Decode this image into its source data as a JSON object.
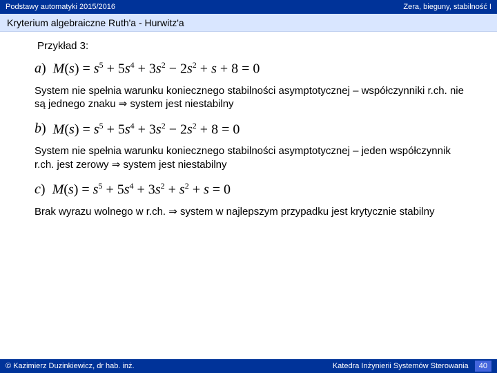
{
  "topbar": {
    "left": "Podstawy automatyki 2015/2016",
    "right": "Zera, bieguny, stabilność  I"
  },
  "subtitle": "Kryterium algebraiczne Ruth'a - Hurwitz'a",
  "example_label": "Przykład 3:",
  "eq_a": {
    "label": "a",
    "lhs": "M(s) =",
    "rhs": "s⁵ + 5s⁴ + 3s² − 2s² + s + 8 = 0"
  },
  "text_a": "System nie spełnia warunku koniecznego stabilności asymptotycznej – współczynniki r.ch. nie są jednego znaku ⇒ system jest niestabilny",
  "eq_b": {
    "label": "b",
    "lhs": "M(s) =",
    "rhs": "s⁵ + 5s⁴ + 3s² − 2s² + 8 = 0"
  },
  "text_b": "System nie spełnia warunku koniecznego stabilności asymptotycznej – jeden współczynnik r.ch. jest zerowy ⇒ system jest niestabilny",
  "eq_c": {
    "label": "c",
    "lhs": "M(s) =",
    "rhs": "s⁵ + 5s⁴ + 3s² + s² + s = 0"
  },
  "text_c": "Brak wyrazu wolnego w r.ch.  ⇒ system w najlepszym przypadku jest krytycznie stabilny",
  "footer": {
    "left": "© Kazimierz Duzinkiewicz, dr hab. inż.",
    "right": "Katedra Inżynierii Systemów Sterowania",
    "page": "40"
  }
}
